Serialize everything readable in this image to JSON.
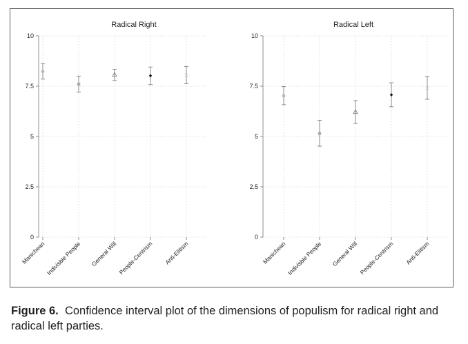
{
  "chart_data": [
    {
      "type": "scatter",
      "subtype": "confidence-interval",
      "title": "Radical Right",
      "categories": [
        "Manichean",
        "Indivisble People",
        "General Will",
        "People-Centrism",
        "Anti-Elitism"
      ],
      "estimates": [
        8.23,
        7.6,
        8.07,
        8.02,
        8.05
      ],
      "ci_low": [
        7.85,
        7.2,
        7.78,
        7.58,
        7.62
      ],
      "ci_high": [
        8.62,
        8.0,
        8.34,
        8.45,
        8.48
      ],
      "markers": [
        "circle",
        "circle",
        "triangle",
        "diamond",
        "x"
      ],
      "marker_colors": [
        "#b8b8b8",
        "#a8a8a8",
        "#8a8a8a",
        "#1a1a1a",
        "#d0d0d0"
      ],
      "ylim": [
        0,
        10
      ],
      "yticks": [
        "0",
        "2.5",
        "5",
        "7.5",
        "10"
      ],
      "grid": true
    },
    {
      "type": "scatter",
      "subtype": "confidence-interval",
      "title": "Radical Left",
      "categories": [
        "Manichean",
        "Indivisble People",
        "General Will",
        "People-Centrism",
        "Anti-Elitism"
      ],
      "estimates": [
        7.02,
        5.15,
        6.22,
        7.07,
        7.4
      ],
      "ci_low": [
        6.58,
        4.52,
        5.65,
        6.48,
        6.85
      ],
      "ci_high": [
        7.48,
        5.8,
        6.78,
        7.67,
        7.98
      ],
      "markers": [
        "circle",
        "circle",
        "triangle",
        "diamond",
        "x"
      ],
      "marker_colors": [
        "#b8b8b8",
        "#a8a8a8",
        "#8a8a8a",
        "#1a1a1a",
        "#d0d0d0"
      ],
      "ylim": [
        0,
        10
      ],
      "yticks": [
        "0",
        "2.5",
        "5",
        "7.5",
        "10"
      ],
      "grid": true
    }
  ],
  "caption": {
    "label": "Figure 6.",
    "text": "Confidence interval plot of the dimensions of populism for radical right and radical left parties."
  },
  "colors": {
    "axis": "#8c8c8c",
    "grid": "#d4d4d4",
    "ci_line": "#8a8a8a"
  }
}
